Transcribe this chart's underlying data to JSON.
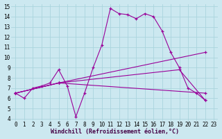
{
  "xlabel": "Windchill (Refroidissement éolien,°C)",
  "bg_color": "#cce8f0",
  "line_color": "#990099",
  "grid_color": "#aad4dd",
  "xlim": [
    -0.5,
    23.5
  ],
  "ylim": [
    3.8,
    15.2
  ],
  "xticks": [
    0,
    1,
    2,
    3,
    4,
    5,
    6,
    7,
    8,
    9,
    10,
    11,
    12,
    13,
    14,
    15,
    16,
    17,
    18,
    19,
    20,
    21,
    22,
    23
  ],
  "yticks": [
    4,
    5,
    6,
    7,
    8,
    9,
    10,
    11,
    12,
    13,
    14,
    15
  ],
  "lines": [
    {
      "x": [
        0,
        1,
        2,
        3,
        4,
        5,
        6,
        7,
        8,
        9,
        10,
        11,
        12,
        13,
        14,
        15,
        16,
        17,
        18,
        19,
        20,
        21,
        22
      ],
      "y": [
        6.5,
        6.0,
        7.0,
        7.2,
        7.5,
        8.8,
        7.2,
        4.2,
        6.5,
        9.0,
        11.2,
        14.8,
        14.3,
        14.2,
        13.8,
        14.3,
        14.0,
        12.6,
        10.5,
        9.0,
        7.0,
        6.5,
        5.8
      ]
    },
    {
      "x": [
        0,
        5,
        22
      ],
      "y": [
        6.5,
        7.5,
        10.5
      ]
    },
    {
      "x": [
        0,
        5,
        19,
        22
      ],
      "y": [
        6.5,
        7.5,
        8.8,
        5.8
      ]
    },
    {
      "x": [
        0,
        5,
        22
      ],
      "y": [
        6.5,
        7.5,
        6.5
      ]
    }
  ],
  "tick_fontsize": 5.5,
  "xlabel_fontsize": 6,
  "xlabel_color": "#440044",
  "xlabel_fontweight": "bold"
}
